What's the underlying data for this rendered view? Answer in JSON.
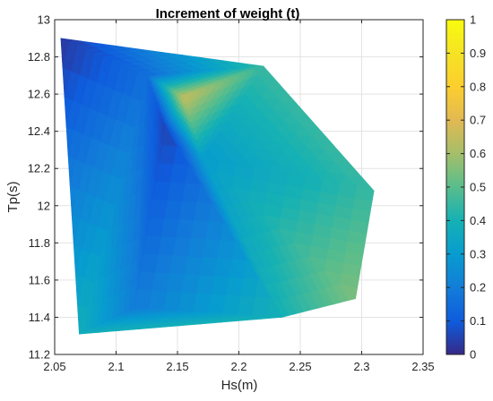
{
  "chart_data": {
    "type": "heatmap",
    "title": "Increment of weight (t)",
    "xlabel": "Hs(m)",
    "ylabel": "Tp(s)",
    "xlim": [
      2.05,
      2.35
    ],
    "ylim": [
      11.2,
      13
    ],
    "x_ticks": [
      "2.05",
      "2.1",
      "2.15",
      "2.2",
      "2.25",
      "2.3",
      "2.35"
    ],
    "y_ticks": [
      "11.2",
      "11.4",
      "11.6",
      "11.8",
      "12",
      "12.2",
      "12.4",
      "12.6",
      "12.8",
      "13"
    ],
    "colorbar": {
      "colormap": "parula",
      "range": [
        0,
        1
      ],
      "ticks": [
        "0",
        "0.1",
        "0.2",
        "0.3",
        "0.4",
        "0.5",
        "0.6",
        "0.7",
        "0.8",
        "0.9",
        "1"
      ]
    },
    "grid": true,
    "points": [
      {
        "x": 2.055,
        "y": 12.9,
        "v": 0.02
      },
      {
        "x": 2.22,
        "y": 12.75,
        "v": 0.45
      },
      {
        "x": 2.31,
        "y": 12.08,
        "v": 0.45
      },
      {
        "x": 2.295,
        "y": 11.5,
        "v": 0.55
      },
      {
        "x": 2.235,
        "y": 11.4,
        "v": 0.4
      },
      {
        "x": 2.07,
        "y": 11.31,
        "v": 0.38
      },
      {
        "x": 2.125,
        "y": 12.7,
        "v": 0.15
      },
      {
        "x": 2.155,
        "y": 12.58,
        "v": 0.65
      },
      {
        "x": 2.14,
        "y": 12.42,
        "v": 0.05
      },
      {
        "x": 2.17,
        "y": 12.25,
        "v": 0.3
      },
      {
        "x": 2.115,
        "y": 11.45,
        "v": 0.2
      }
    ],
    "triangles": [
      [
        0,
        6,
        5
      ],
      [
        0,
        1,
        6
      ],
      [
        6,
        1,
        7
      ],
      [
        6,
        7,
        8
      ],
      [
        7,
        1,
        9
      ],
      [
        1,
        2,
        9
      ],
      [
        9,
        2,
        3
      ],
      [
        9,
        3,
        4
      ],
      [
        8,
        7,
        9
      ],
      [
        8,
        9,
        4
      ],
      [
        8,
        4,
        10
      ],
      [
        10,
        4,
        5
      ],
      [
        6,
        8,
        10
      ],
      [
        6,
        10,
        5
      ]
    ]
  }
}
